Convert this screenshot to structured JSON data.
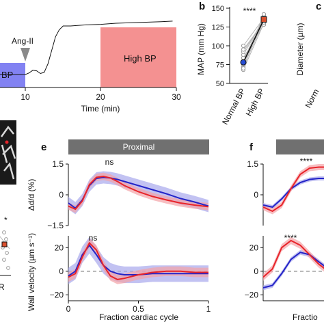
{
  "colors": {
    "red": "#e8242a",
    "red_band": "#f4a3a6",
    "blue": "#2424c8",
    "blue_band": "#a8a8ec",
    "normal_bp_fill": "#8282f2",
    "high_bp_fill": "#f49191",
    "header_fill": "#707070",
    "header_text": "#ffffff",
    "mean_marker_red": "#d9502e",
    "mean_marker_blue": "#2a4fd4"
  },
  "panel_labels": {
    "b": "b",
    "c": "c",
    "e": "e",
    "f": "f"
  },
  "icons": [
    "arrow-down-marker-icon",
    "microscope-image-thumbnail"
  ],
  "chart_data": [
    {
      "id": "panel-a-timecourse",
      "type": "line",
      "xlabel": "Time (min)",
      "x_ticks": [
        "10",
        "20",
        "30"
      ],
      "x": [
        4,
        6,
        8,
        9.5,
        10,
        10.5,
        11,
        11.5,
        12,
        12.5,
        13,
        13.5,
        14,
        14.5,
        15,
        16,
        18,
        20,
        22,
        24,
        26,
        28,
        29.5
      ],
      "values": [
        0.1,
        0.1,
        0.1,
        0.1,
        0.1,
        0.13,
        0.18,
        0.17,
        0.12,
        0.14,
        0.3,
        0.55,
        0.8,
        0.93,
        1.0,
        1.0,
        1.02,
        1.03,
        1.05,
        1.06,
        1.07,
        1.08,
        1.09
      ],
      "xlim": [
        4,
        30
      ],
      "annotations": {
        "ang_ii": "Ang-II",
        "high_bp": "High BP",
        "normal_bp": "BP"
      },
      "shaded_regions": [
        {
          "label": "Normal BP",
          "x": [
            4,
            10
          ]
        },
        {
          "label": "High BP",
          "x": [
            20,
            30
          ]
        }
      ]
    },
    {
      "id": "panel-b-map",
      "type": "scatter",
      "ylabel": "MAP (mm Hg)",
      "categories": [
        "Normal BP",
        "High BP"
      ],
      "y_ticks": [
        50,
        75,
        100,
        125,
        150
      ],
      "ylim": [
        50,
        150
      ],
      "significance": "****",
      "mean": [
        78,
        135
      ],
      "individual_pairs": [
        [
          68,
          130
        ],
        [
          72,
          133
        ],
        [
          75,
          138
        ],
        [
          80,
          140
        ],
        [
          84,
          128
        ],
        [
          88,
          136
        ],
        [
          92,
          134
        ],
        [
          95,
          131
        ],
        [
          70,
          142
        ],
        [
          100,
          137
        ]
      ]
    },
    {
      "id": "panel-c-diameter",
      "type": "scatter",
      "ylabel": "Diameter (µm)",
      "categories": [
        "Norm"
      ]
    },
    {
      "id": "panel-e-proximal-dd",
      "type": "line",
      "header": "Proximal",
      "ylabel": "Δd/d (%)",
      "y_ticks": [
        "1.5",
        "0",
        "−1.5"
      ],
      "y_tick_values": [
        1.5,
        0,
        -1.5
      ],
      "ylim": [
        -1.5,
        1.5
      ],
      "significance": "ns",
      "x": [
        0,
        0.05,
        0.1,
        0.15,
        0.2,
        0.25,
        0.3,
        0.35,
        0.4,
        0.5,
        0.6,
        0.7,
        0.8,
        0.9,
        1.0
      ],
      "series": [
        {
          "name": "High BP",
          "values": [
            -0.55,
            -0.7,
            -0.3,
            0.5,
            0.85,
            0.9,
            0.82,
            0.65,
            0.45,
            0.15,
            -0.08,
            -0.25,
            -0.4,
            -0.5,
            -0.58
          ],
          "band": 0.18
        },
        {
          "name": "Normal BP",
          "values": [
            -0.4,
            -0.65,
            -0.25,
            0.45,
            0.8,
            0.85,
            0.82,
            0.75,
            0.65,
            0.45,
            0.25,
            0.05,
            -0.18,
            -0.35,
            -0.55
          ],
          "band": 0.3
        }
      ]
    },
    {
      "id": "panel-e-proximal-wv",
      "type": "line",
      "xlabel": "Fraction cardiac cycle",
      "ylabel": "Wall velocity (µm s⁻¹)",
      "x_ticks": [
        "0",
        "0.5",
        "1"
      ],
      "y_ticks": [
        "20",
        "0",
        "−20"
      ],
      "y_tick_values": [
        20,
        0,
        -20
      ],
      "ylim": [
        -25,
        30
      ],
      "significance": "ns",
      "x": [
        0,
        0.05,
        0.1,
        0.15,
        0.2,
        0.25,
        0.3,
        0.35,
        0.4,
        0.5,
        0.6,
        0.7,
        0.8,
        0.9,
        1.0
      ],
      "series": [
        {
          "name": "High BP",
          "values": [
            -5,
            -2,
            12,
            24,
            18,
            5,
            -4,
            -7,
            -6,
            -3,
            -1,
            0,
            0,
            -1,
            -1
          ],
          "band": 4
        },
        {
          "name": "Normal BP",
          "values": [
            -4,
            0,
            14,
            22,
            14,
            5,
            0,
            -2,
            -3,
            -3,
            -2,
            -2,
            -2,
            -2,
            -2
          ],
          "band": 7
        }
      ]
    },
    {
      "id": "panel-f-dd",
      "type": "line",
      "y_ticks": [
        "1.5",
        "0"
      ],
      "y_tick_values": [
        1.5,
        0
      ],
      "ylim": [
        -1.5,
        1.5
      ],
      "significance": "****",
      "x": [
        0,
        0.02,
        0.04,
        0.06,
        0.08,
        0.1,
        0.12,
        0.14
      ],
      "series": [
        {
          "name": "High BP",
          "values": [
            -0.6,
            -0.8,
            -0.5,
            0.3,
            1.0,
            1.3,
            1.35,
            1.35
          ],
          "band": 0.15
        },
        {
          "name": "Normal BP",
          "values": [
            -0.5,
            -0.6,
            -0.2,
            0.3,
            0.6,
            0.75,
            0.8,
            0.8
          ],
          "band": 0.1
        }
      ]
    },
    {
      "id": "panel-f-wv",
      "type": "line",
      "xlabel": "Fractio",
      "y_ticks": [
        "20",
        "0",
        "−20"
      ],
      "y_tick_values": [
        20,
        0,
        -20
      ],
      "ylim": [
        -25,
        30
      ],
      "significance": "****",
      "x": [
        0,
        0.02,
        0.04,
        0.06,
        0.08,
        0.1,
        0.12,
        0.14
      ],
      "series": [
        {
          "name": "High BP",
          "values": [
            -5,
            2,
            20,
            26,
            22,
            14,
            6,
            0
          ],
          "band": 3
        },
        {
          "name": "Normal BP",
          "values": [
            -14,
            -12,
            -2,
            10,
            16,
            14,
            8,
            2
          ],
          "band": 2
        }
      ]
    }
  ],
  "texts": {
    "imal": "imal",
    "d_panel_star": "*",
    "d_panel_tick": "R"
  }
}
